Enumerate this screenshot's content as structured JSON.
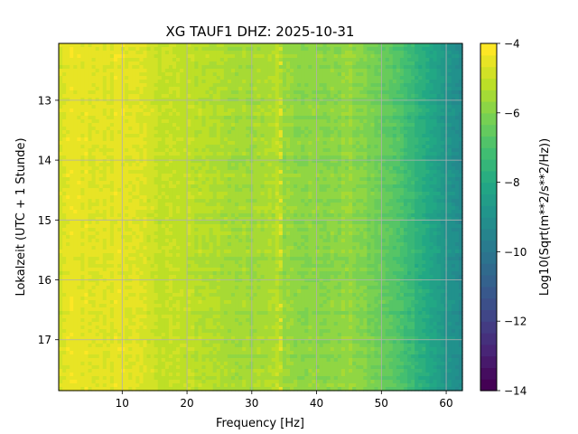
{
  "chart_data": {
    "type": "heatmap",
    "title": "XG TAUF1  DHZ: 2025-10-31",
    "xlabel": "Frequency [Hz]",
    "ylabel": "Lokalzeit (UTC + 1 Stunde)",
    "xlim": [
      0.2,
      62.5
    ],
    "ylim": [
      17.85,
      12.05
    ],
    "x_ticks": [
      10,
      20,
      30,
      40,
      50,
      60
    ],
    "x_tick_labels": [
      "10",
      "20",
      "30",
      "40",
      "50",
      "60"
    ],
    "y_ticks": [
      13,
      14,
      15,
      16,
      17
    ],
    "y_tick_labels": [
      "13",
      "14",
      "15",
      "16",
      "17"
    ],
    "grid": true,
    "colorbar": {
      "label": "Log10(Sqrt(m**2/s**2/Hz))",
      "range": [
        -14,
        -4
      ],
      "ticks": [
        -4,
        -6,
        -8,
        -10,
        -12,
        -14
      ],
      "tick_labels": [
        "−4",
        "−6",
        "−8",
        "−10",
        "−12",
        "−14"
      ],
      "colormap": "viridis",
      "levels": 30
    },
    "spectrum_profile": {
      "frequency_hz": [
        0.2,
        2,
        5,
        8,
        10,
        11,
        13,
        15,
        20,
        25,
        30,
        34,
        35,
        38,
        42,
        45,
        48,
        50,
        52,
        54,
        56,
        58,
        60,
        62.5
      ],
      "value_log10": [
        -4.6,
        -4.35,
        -4.4,
        -4.5,
        -4.3,
        -4.4,
        -4.6,
        -4.8,
        -5.0,
        -5.2,
        -5.5,
        -5.1,
        -5.5,
        -5.7,
        -5.8,
        -5.6,
        -6.0,
        -6.3,
        -6.7,
        -7.1,
        -7.6,
        -8.2,
        -8.8,
        -9.3
      ]
    },
    "spectral_line_hz": 34.5
  }
}
